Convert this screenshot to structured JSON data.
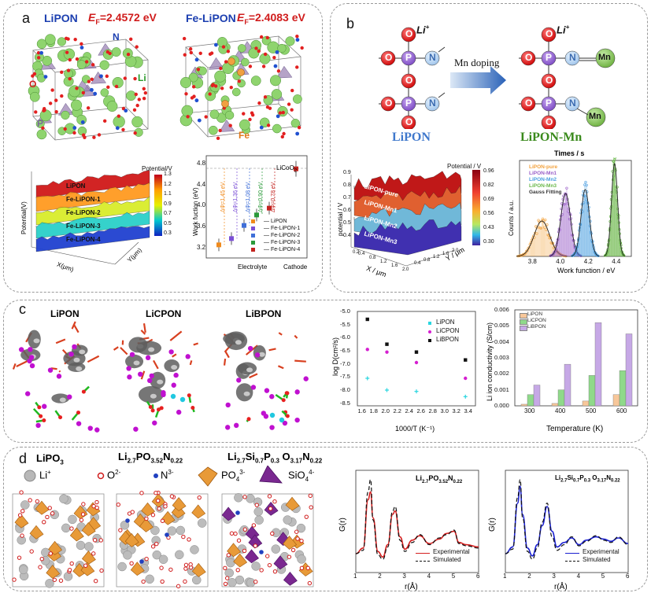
{
  "panel_a": {
    "label": "a",
    "s1_name": "LiPON",
    "s1_ef": "E",
    "s1_ef_sub": "F",
    "s1_ef_val": "=2.4572 eV",
    "s2_name": "Fe-LiPON",
    "s2_ef": "E",
    "s2_ef_sub": "F",
    "s2_ef_val": "=2.4083 eV",
    "atoms": {
      "n": "N",
      "li": "Li",
      "o": "O",
      "p": "P",
      "fe": "Fe"
    },
    "surface": {
      "ylabel": "Potential(V)",
      "xlabel": "X(μm)",
      "ylabel2": "Y(μm)",
      "cbar_title": "Potential/V",
      "cbar_ticks": [
        "1.3",
        "1.2",
        "1.1",
        "0.9",
        "0.7",
        "0.5",
        "0.3"
      ],
      "layers": [
        "LiPON",
        "Fe-LiPON-1",
        "Fe-LiPON-2",
        "Fe-LiPON-3",
        "Fe-LiPON-4"
      ]
    },
    "workfunction": {
      "ylabel": "Work fuction (eV)",
      "xlabel_left": "Electrolyte",
      "xlabel_right": "Cathode",
      "yticks": [
        "4.8",
        "4.4",
        "4.0",
        "3.6",
        "3.2"
      ],
      "cathode_label": "LiCoO",
      "cathode_sub": "2",
      "deltas": [
        "ΔΦ=1.45 eV",
        "ΔΦ=1.36 eV",
        "ΔΦ=1.08 eV",
        "ΔΦ=0.90 eV",
        "ΔΦ=0.78 eV"
      ],
      "legend": [
        "LiPON",
        "Fe-LiPON-1",
        "Fe-LiPON-2",
        "Fe-LiPON-3",
        "Fe-LiPON-4"
      ],
      "colors": [
        "#f08a1c",
        "#7b4fd6",
        "#3f6fd8",
        "#2b9a3a",
        "#c3231f"
      ]
    }
  },
  "panel_b": {
    "label": "b",
    "left_name": "LiPON",
    "right_name": "LiPON-Mn",
    "arrow_label": "Mn doping",
    "atoms": {
      "o": "O",
      "p": "P",
      "n": "N",
      "li": "Li",
      "li_sup": "+",
      "mn": "Mn"
    },
    "surface": {
      "cbar_title": "Potential / V",
      "cbar_ticks": [
        "0.96",
        "0.82",
        "0.69",
        "0.56",
        "0.43",
        "0.30"
      ],
      "layers": [
        "LiPON-pure",
        "LiPON-Mn1",
        "LiPON-Mn2",
        "LiPON-Mn3"
      ],
      "zlabel": "potential / V",
      "zticks": [
        "0.9",
        "0.8",
        "0.7",
        "0.6",
        "0.5",
        "0.4"
      ],
      "xlabel": "X / μm",
      "ylabel": "Y / μm",
      "xticks": [
        "0.2",
        "0.4",
        "0.6",
        "0.8",
        "1.0",
        "1.2",
        "1.4",
        "1.6",
        "1.8",
        "2.0"
      ],
      "yticks": [
        "0.2",
        "0.4",
        "0.6",
        "0.8",
        "1.0",
        "1.2",
        "1.4",
        "1.6",
        "1.8",
        "2.0"
      ]
    },
    "histogram": {
      "top_label": "Times / s",
      "ylabel": "Counts / a.u.",
      "xlabel": "Work function / eV",
      "xticks": [
        "3.8",
        "4.0",
        "4.2",
        "4.4"
      ],
      "legend": [
        "LiPON-pure",
        "LiPON-Mn1",
        "LiPON-Mn2",
        "LiPON-Mn3",
        "Gauss Fitting"
      ],
      "colors": [
        "#f2a13c",
        "#9a5fc8",
        "#4a9ee0",
        "#6ab84a",
        "#333333"
      ]
    }
  },
  "panel_c": {
    "label": "c",
    "mol_names": [
      "LiPON",
      "LiCPON",
      "LiBPON"
    ],
    "diffusion_chart": {
      "ylabel": "log D(cm²/s)",
      "xlabel": "1000/T (K⁻¹)",
      "xticks": [
        "1.6",
        "1.8",
        "2.0",
        "2.2",
        "2.4",
        "2.6",
        "2.8",
        "3.0",
        "3.2",
        "3.4"
      ],
      "yticks": [
        "-5.0",
        "-5.5",
        "-6.0",
        "-6.5",
        "-7.0",
        "-7.5",
        "-8.0",
        "-8.5"
      ],
      "legend": [
        "LiPON",
        "LiCPON",
        "LiBPON"
      ],
      "colors": [
        "#29d6e0",
        "#d51fd0",
        "#111111"
      ]
    },
    "conductivity_chart": {
      "ylabel": "Li ion conductivity (S/cm)",
      "xlabel": "Temperature (K)",
      "yticks": [
        "0.006",
        "0.005",
        "0.004",
        "0.003",
        "0.002",
        "0.001",
        "0.000"
      ],
      "legend": [
        "LiPON",
        "LiCPON",
        "LiBPON"
      ],
      "colors": [
        "#f7c79a",
        "#8fd98a",
        "#c6a8e6"
      ]
    }
  },
  "chart_data": [
    {
      "type": "scatter",
      "ylabel": "log D(cm²/s)",
      "xlabel": "1000/T (K⁻¹)",
      "xlim": [
        1.5,
        3.5
      ],
      "ylim": [
        -8.6,
        -5.0
      ],
      "series": [
        {
          "name": "LiPON",
          "x": [
            1.67,
            2.0,
            2.5,
            3.33
          ],
          "y": [
            -7.55,
            -8.0,
            -8.05,
            -8.25
          ]
        },
        {
          "name": "LiCPON",
          "x": [
            1.67,
            2.0,
            2.5,
            3.33
          ],
          "y": [
            -6.45,
            -6.55,
            -6.95,
            -7.55
          ]
        },
        {
          "name": "LiBPON",
          "x": [
            1.67,
            2.0,
            2.5,
            3.33
          ],
          "y": [
            -5.3,
            -6.25,
            -6.55,
            -6.85
          ]
        }
      ]
    },
    {
      "type": "bar",
      "ylabel": "Li ion conductivity (S/cm)",
      "xlabel": "Temperature (K)",
      "categories": [
        "300",
        "400",
        "500",
        "600"
      ],
      "ylim": [
        0,
        0.006
      ],
      "series": [
        {
          "name": "LiPON",
          "values": [
            0.0001,
            0.00015,
            0.0003,
            0.0007
          ]
        },
        {
          "name": "LiCPON",
          "values": [
            0.0007,
            0.001,
            0.0019,
            0.0022
          ]
        },
        {
          "name": "LiBPON",
          "values": [
            0.0013,
            0.0026,
            0.0052,
            0.0045
          ]
        }
      ]
    },
    {
      "type": "line",
      "title": "Li2.7PO3.52N0.22",
      "ylabel": "G(r)",
      "xlabel": "r(Å)",
      "xlim": [
        1,
        6
      ],
      "series": [
        {
          "name": "Experimental",
          "x": [
            1,
            1.3,
            1.5,
            1.6,
            1.7,
            1.9,
            2.1,
            2.3,
            2.5,
            2.6,
            2.8,
            3.0,
            3.3,
            3.6,
            4.0,
            4.4,
            4.7,
            5.0,
            5.2,
            5.5,
            6.0
          ],
          "y": [
            0,
            0.5,
            4.8,
            5.5,
            3.2,
            0.2,
            -0.3,
            0.8,
            3.5,
            3.8,
            1.5,
            0.4,
            1.2,
            1.6,
            0.9,
            1.3,
            1.8,
            2.0,
            1.0,
            0.8,
            0.6
          ]
        },
        {
          "name": "Simulated",
          "x": [
            1,
            1.3,
            1.5,
            1.6,
            1.7,
            1.9,
            2.1,
            2.3,
            2.5,
            2.6,
            2.8,
            3.0,
            3.3,
            3.6,
            4.0,
            4.4,
            4.7,
            5.0,
            5.2,
            5.5,
            6.0
          ],
          "y": [
            0,
            0.3,
            5.5,
            6.6,
            3.0,
            -0.1,
            -0.5,
            0.6,
            3.8,
            4.2,
            1.2,
            0.2,
            1.0,
            1.7,
            0.8,
            1.4,
            1.7,
            2.1,
            0.9,
            0.7,
            0.5
          ]
        }
      ]
    },
    {
      "type": "line",
      "title": "Li2.7Si0.7P0.3O3.17N0.22",
      "ylabel": "G(r)",
      "xlabel": "r(Å)",
      "xlim": [
        1,
        6
      ],
      "series": [
        {
          "name": "Experimental",
          "x": [
            1,
            1.3,
            1.5,
            1.6,
            1.7,
            1.9,
            2.1,
            2.3,
            2.5,
            2.7,
            2.9,
            3.1,
            3.4,
            3.7,
            4.0,
            4.3,
            4.7,
            5.0,
            5.3,
            5.6,
            6.0
          ],
          "y": [
            0,
            0.6,
            4.5,
            6.0,
            3.5,
            0.5,
            -0.2,
            0.8,
            2.5,
            4.2,
            2.0,
            0.6,
            1.0,
            1.4,
            0.8,
            1.2,
            1.5,
            1.3,
            1.1,
            1.4,
            0.9
          ]
        },
        {
          "name": "Simulated",
          "x": [
            1,
            1.3,
            1.5,
            1.6,
            1.7,
            1.9,
            2.1,
            2.3,
            2.5,
            2.7,
            2.9,
            3.1,
            3.4,
            3.7,
            4.0,
            4.3,
            4.7,
            5.0,
            5.3,
            5.6,
            6.0
          ],
          "y": [
            0,
            0.4,
            5.0,
            6.6,
            3.2,
            0.2,
            -0.5,
            0.5,
            2.8,
            4.5,
            1.5,
            0.3,
            0.8,
            1.5,
            0.7,
            1.1,
            1.6,
            1.2,
            1.0,
            1.5,
            0.8
          ]
        }
      ]
    }
  ],
  "panel_d": {
    "label": "d",
    "struct1": "LiPO",
    "struct1_sub": "3",
    "struct2_parts": [
      "Li",
      "2.7",
      "PO",
      "3.52",
      "N",
      "0.22"
    ],
    "struct3_parts": [
      "Li",
      "2.7",
      "Si",
      "0.7",
      "P",
      "0.3",
      " O",
      "3.17",
      "N",
      "0.22"
    ],
    "legend": {
      "li": "Li",
      "li_sup": "+",
      "o": "O",
      "o_sup": "2-",
      "n": "N",
      "n_sup": "3-",
      "po": "PO",
      "po_sub": "4",
      "po_sup": "3-",
      "sio": "SiO",
      "sio_sub": "4",
      "sio_sup": "4-"
    },
    "gr1": {
      "ylabel": "G(r)",
      "xlabel": "r(Å)",
      "xticks": [
        "1",
        "2",
        "3",
        "4",
        "5",
        "6"
      ],
      "legend": [
        "Experimental",
        "Simulated"
      ]
    },
    "gr2": {
      "ylabel": "G(r)",
      "xlabel": "r(Å)",
      "xticks": [
        "1",
        "2",
        "3",
        "4",
        "5",
        "6"
      ],
      "legend": [
        "Experimental",
        "Simulated"
      ]
    }
  }
}
